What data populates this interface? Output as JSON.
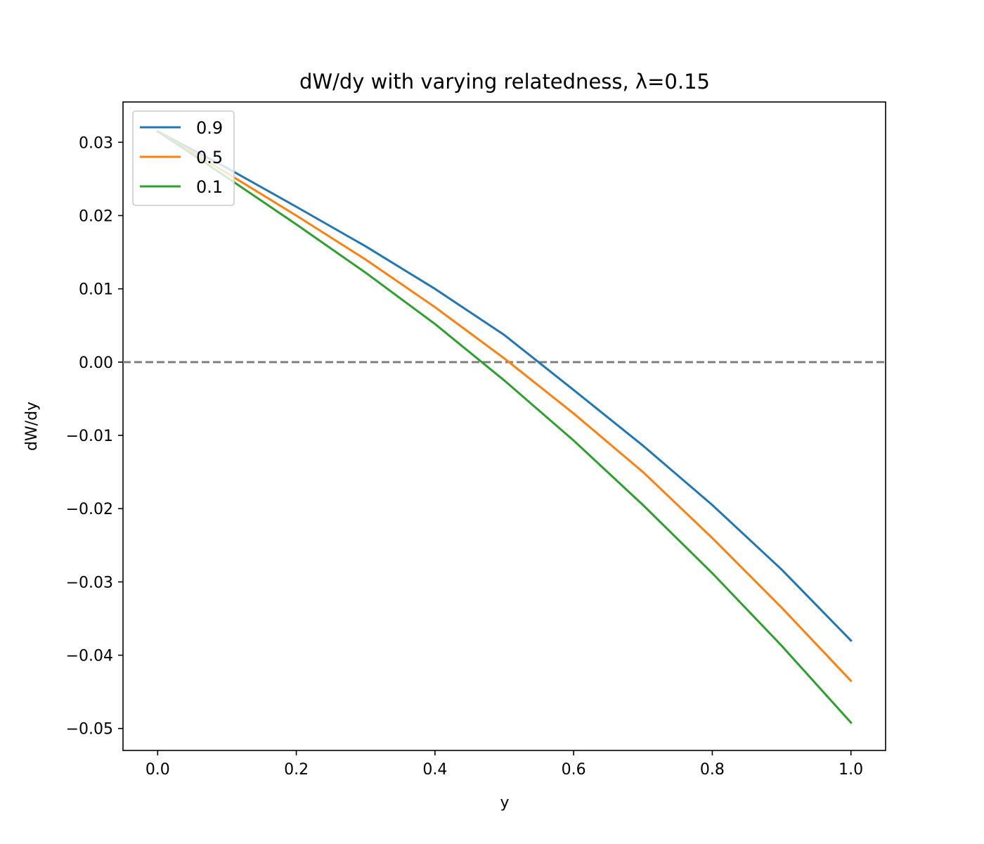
{
  "chart_data": {
    "type": "line",
    "title": "dW/dy with varying relatedness, λ=0.15",
    "xlabel": "y",
    "ylabel": "dW/dy",
    "xlim": [
      -0.05,
      1.05
    ],
    "ylim": [
      -0.053,
      0.0355
    ],
    "xticks": [
      0.0,
      0.2,
      0.4,
      0.6,
      0.8,
      1.0
    ],
    "xtick_labels": [
      "0.0",
      "0.2",
      "0.4",
      "0.6",
      "0.8",
      "1.0"
    ],
    "yticks": [
      0.03,
      0.02,
      0.01,
      0.0,
      -0.01,
      -0.02,
      -0.03,
      -0.04,
      -0.05
    ],
    "ytick_labels": [
      "0.03",
      "0.02",
      "0.01",
      "0.00",
      "−0.01",
      "−0.02",
      "−0.03",
      "−0.04",
      "−0.05"
    ],
    "grid": false,
    "legend_position": "top-left",
    "reference_line": {
      "y": 0.0,
      "style": "dashed",
      "color": "#808080"
    },
    "x": [
      0.0,
      0.1,
      0.2,
      0.3,
      0.4,
      0.5,
      0.6,
      0.7,
      0.8,
      0.9,
      1.0
    ],
    "series": [
      {
        "name": "0.9",
        "color": "#1f77b4",
        "values": [
          0.0315,
          0.0265,
          0.0212,
          0.0158,
          0.01,
          0.0037,
          -0.0038,
          -0.0114,
          -0.0195,
          -0.0283,
          -0.038
        ]
      },
      {
        "name": "0.5",
        "color": "#ff7f0e",
        "values": [
          0.0315,
          0.0258,
          0.02,
          0.014,
          0.0075,
          0.0005,
          -0.007,
          -0.015,
          -0.024,
          -0.0335,
          -0.0435
        ]
      },
      {
        "name": "0.1",
        "color": "#2ca02c",
        "values": [
          0.0315,
          0.0252,
          0.0188,
          0.0122,
          0.0052,
          -0.0025,
          -0.0107,
          -0.0195,
          -0.0288,
          -0.0387,
          -0.0492
        ]
      }
    ]
  }
}
